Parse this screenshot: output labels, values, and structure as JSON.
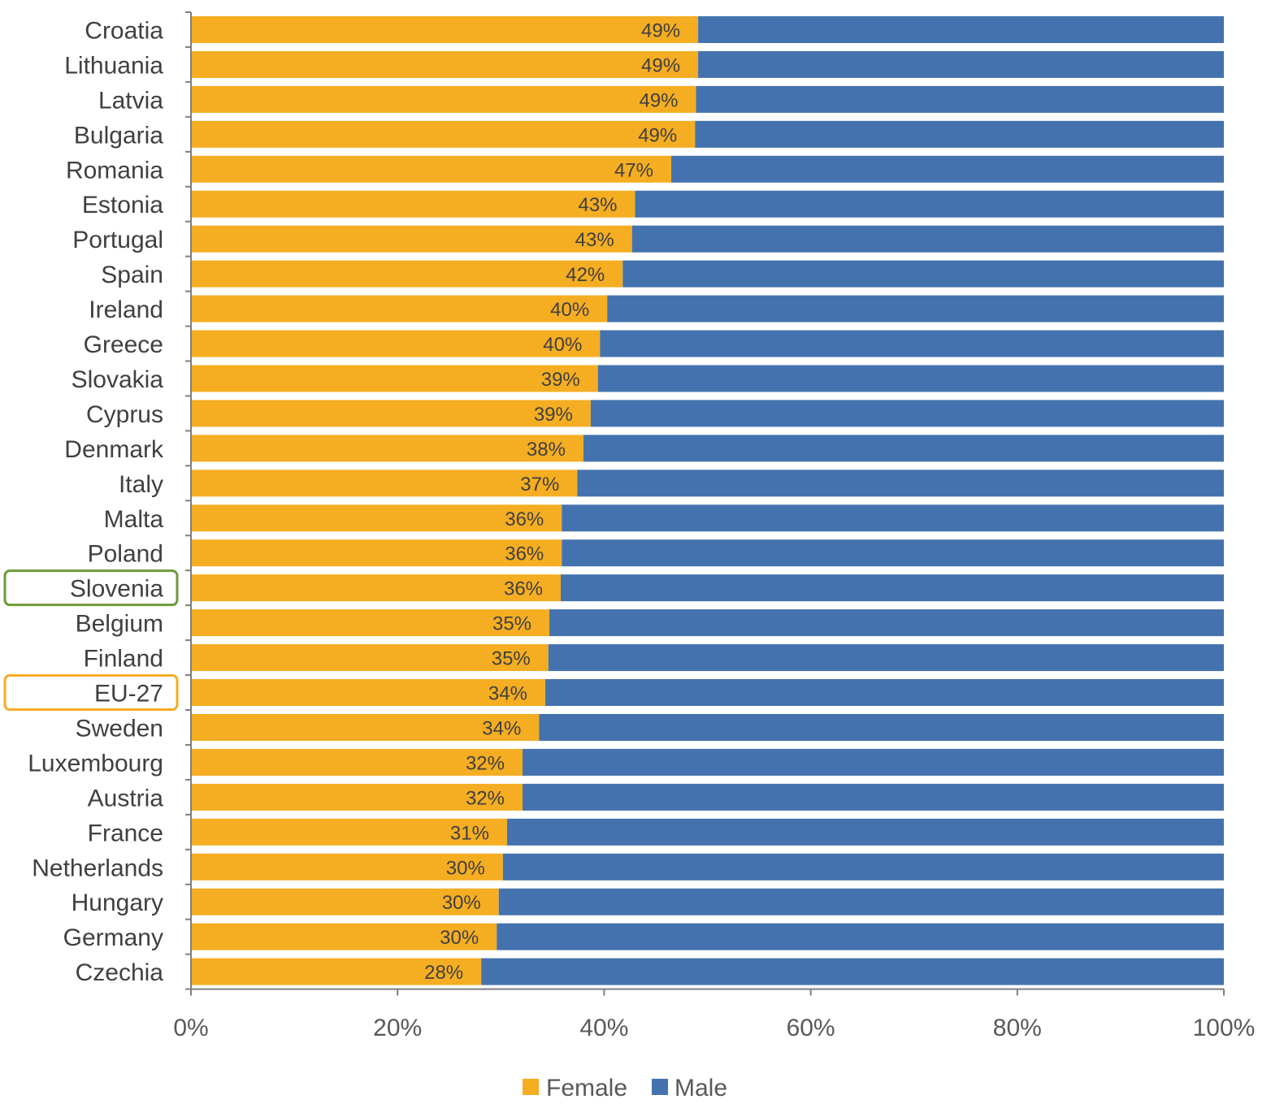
{
  "chart_data": {
    "type": "bar",
    "orientation": "horizontal",
    "stacked": "100%",
    "categories": [
      "Croatia",
      "Lithuania",
      "Latvia",
      "Bulgaria",
      "Romania",
      "Estonia",
      "Portugal",
      "Spain",
      "Ireland",
      "Greece",
      "Slovakia",
      "Cyprus",
      "Denmark",
      "Italy",
      "Malta",
      "Poland",
      "Slovenia",
      "Belgium",
      "Finland",
      "EU-27",
      "Sweden",
      "Luxembourg",
      "Austria",
      "France",
      "Netherlands",
      "Hungary",
      "Germany",
      "Czechia"
    ],
    "series": [
      {
        "name": "Female",
        "color": "#F5AD22",
        "values": [
          49.1,
          49.1,
          48.9,
          48.8,
          46.5,
          43.0,
          42.7,
          41.8,
          40.3,
          39.6,
          39.4,
          38.7,
          38.0,
          37.4,
          35.9,
          35.9,
          35.8,
          34.7,
          34.6,
          34.3,
          33.7,
          32.1,
          32.1,
          30.6,
          30.2,
          29.8,
          29.6,
          28.1
        ],
        "labels": [
          "49%",
          "49%",
          "49%",
          "49%",
          "47%",
          "43%",
          "43%",
          "42%",
          "40%",
          "40%",
          "39%",
          "39%",
          "38%",
          "37%",
          "36%",
          "36%",
          "36%",
          "35%",
          "35%",
          "34%",
          "34%",
          "32%",
          "32%",
          "31%",
          "30%",
          "30%",
          "30%",
          "28%"
        ]
      },
      {
        "name": "Male",
        "color": "#4472AE",
        "values": [
          50.9,
          50.9,
          51.1,
          51.2,
          53.5,
          57.0,
          57.3,
          58.2,
          59.7,
          60.4,
          60.6,
          61.3,
          62.0,
          62.6,
          64.1,
          64.1,
          64.2,
          65.3,
          65.4,
          65.7,
          66.3,
          67.9,
          67.9,
          69.4,
          69.8,
          70.2,
          70.4,
          71.9
        ]
      }
    ],
    "x_ticks": [
      "0%",
      "20%",
      "40%",
      "60%",
      "80%",
      "100%"
    ],
    "xlim": [
      0,
      100
    ],
    "highlighted": [
      {
        "category": "Slovenia",
        "color": "#6E9A3A"
      },
      {
        "category": "EU-27",
        "color": "#F5AD22"
      }
    ],
    "legend_position": "bottom-center",
    "grid": false,
    "axis_color": "#7F7F7F"
  }
}
